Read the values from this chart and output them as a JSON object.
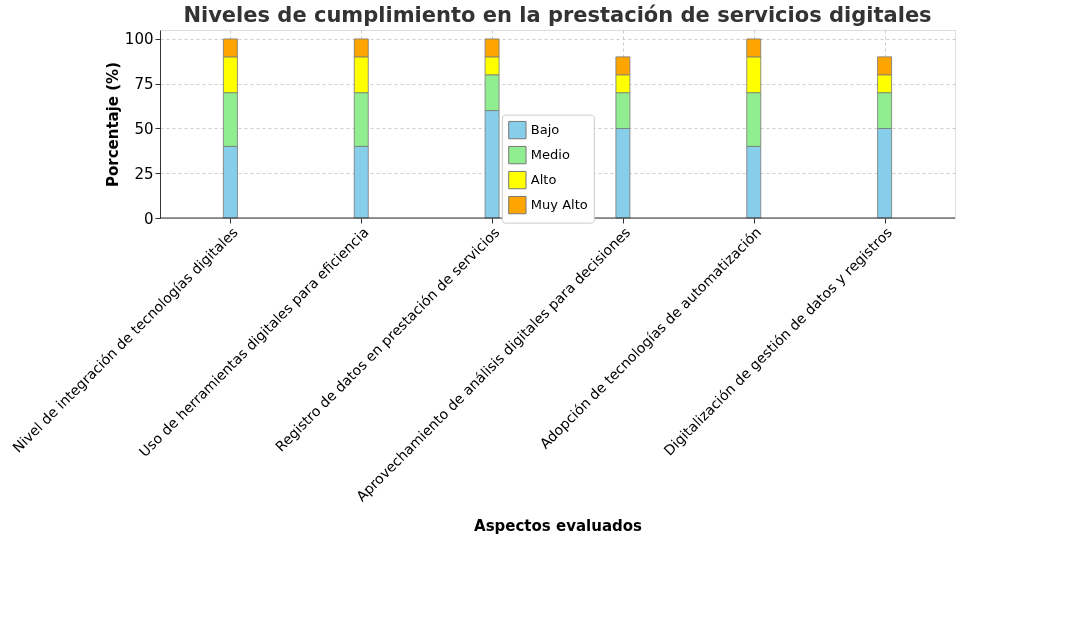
{
  "chart_data": {
    "type": "bar",
    "stacked": true,
    "title": "Niveles de cumplimiento en la prestación de servicios digitales",
    "xlabel": "Aspectos evaluados",
    "ylabel": "Porcentaje (%)",
    "categories": [
      "Nivel de integración de tecnologías digitales",
      "Uso de herramientas digitales para eficiencia",
      "Registro de datos en prestación de servicios",
      "Aprovechamiento de análisis digitales para decisiones",
      "Adopción de tecnologías de automatización",
      "Digitalización de gestión de datos y registros"
    ],
    "series": [
      {
        "name": "Bajo",
        "color": "#87ceeb",
        "values": [
          40,
          40,
          60,
          50,
          40,
          50
        ]
      },
      {
        "name": "Medio",
        "color": "#90ee90",
        "values": [
          30,
          30,
          20,
          20,
          30,
          20
        ]
      },
      {
        "name": "Alto",
        "color": "#ffff00",
        "values": [
          20,
          20,
          10,
          10,
          20,
          10
        ]
      },
      {
        "name": "Muy Alto",
        "color": "#ffa500",
        "values": [
          10,
          10,
          10,
          10,
          10,
          10
        ]
      }
    ],
    "ylim": [
      0,
      105
    ],
    "yticks": [
      0,
      25,
      50,
      75,
      100
    ],
    "grid": true,
    "legend": "center"
  }
}
